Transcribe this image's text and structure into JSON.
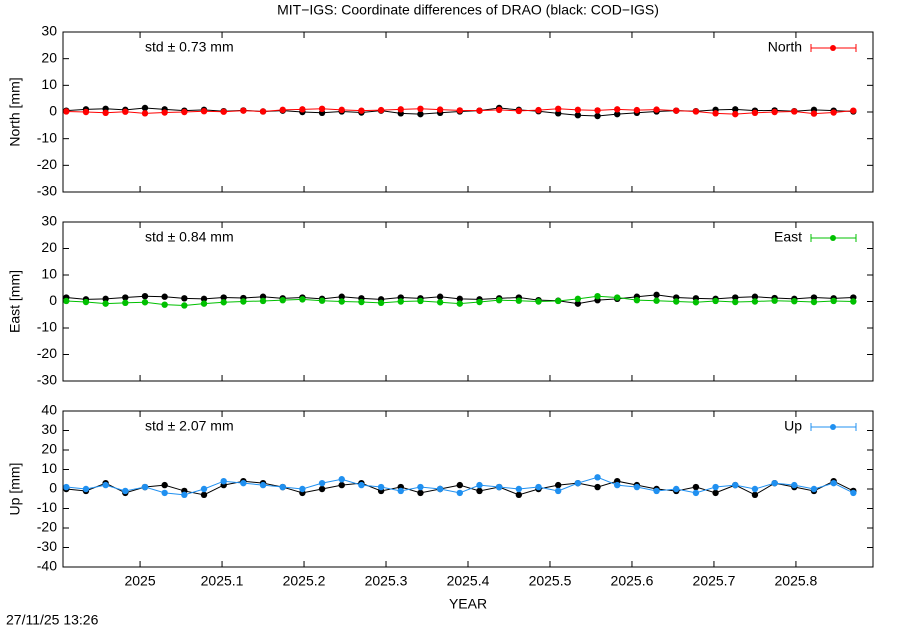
{
  "title": "MIT−IGS: Coordinate differences of DRAO (black: COD−IGS)",
  "timestamp": "27/11/25 13:26",
  "chart_data": [
    {
      "type": "scatter",
      "ylabel": "North [mm]",
      "annotation": "std ± 0.73 mm",
      "legend": "top-right",
      "grid": false,
      "x": [
        2024.91,
        2024.934,
        2024.958,
        2024.982,
        2025.006,
        2025.03,
        2025.054,
        2025.078,
        2025.102,
        2025.126,
        2025.15,
        2025.174,
        2025.198,
        2025.222,
        2025.246,
        2025.27,
        2025.294,
        2025.318,
        2025.342,
        2025.366,
        2025.39,
        2025.414,
        2025.438,
        2025.462,
        2025.486,
        2025.51,
        2025.534,
        2025.558,
        2025.582,
        2025.606,
        2025.63,
        2025.654,
        2025.678,
        2025.702,
        2025.726,
        2025.75,
        2025.774,
        2025.798,
        2025.822,
        2025.846,
        2025.87
      ],
      "xlim": [
        2024.906,
        2025.894
      ],
      "xticks": [
        2025,
        2025.1,
        2025.2,
        2025.3,
        2025.4,
        2025.5,
        2025.6,
        2025.7,
        2025.8
      ],
      "ylim": [
        -30,
        30
      ],
      "yticks": [
        -30,
        -20,
        -10,
        0,
        10,
        20,
        30
      ],
      "series": [
        {
          "color": "#000000",
          "values": [
            0.5,
            1,
            1.2,
            0.8,
            1.5,
            1,
            0.5,
            0.8,
            0.3,
            0.6,
            0.2,
            0.5,
            0,
            -0.3,
            0.2,
            -0.2,
            0.5,
            -0.5,
            -0.8,
            -0.3,
            0.2,
            0.5,
            1.5,
            0.8,
            0.3,
            -0.5,
            -1.2,
            -1.5,
            -0.8,
            -0.3,
            0.2,
            0.5,
            0.3,
            0.8,
            1,
            0.5,
            0.6,
            0.3,
            0.8,
            0.5,
            0.2
          ]
        },
        {
          "name": "North",
          "color": "#ff0000",
          "values": [
            0.2,
            0,
            -0.3,
            0.1,
            -0.5,
            -0.2,
            0,
            0.3,
            0.1,
            0.5,
            0.2,
            0.8,
            1,
            1.2,
            0.8,
            0.5,
            0.7,
            1,
            1.2,
            0.9,
            0.6,
            0.5,
            0.8,
            0.4,
            0.7,
            1.2,
            0.8,
            0.6,
            1,
            0.7,
            0.9,
            0.5,
            0.2,
            -0.5,
            -0.8,
            -0.3,
            0,
            0.2,
            -0.6,
            -0.2,
            0.5
          ]
        }
      ]
    },
    {
      "type": "scatter",
      "ylabel": "East [mm]",
      "annotation": "std ± 0.84 mm",
      "legend": "top-right",
      "grid": false,
      "x": [
        2024.91,
        2024.934,
        2024.958,
        2024.982,
        2025.006,
        2025.03,
        2025.054,
        2025.078,
        2025.102,
        2025.126,
        2025.15,
        2025.174,
        2025.198,
        2025.222,
        2025.246,
        2025.27,
        2025.294,
        2025.318,
        2025.342,
        2025.366,
        2025.39,
        2025.414,
        2025.438,
        2025.462,
        2025.486,
        2025.51,
        2025.534,
        2025.558,
        2025.582,
        2025.606,
        2025.63,
        2025.654,
        2025.678,
        2025.702,
        2025.726,
        2025.75,
        2025.774,
        2025.798,
        2025.822,
        2025.846,
        2025.87
      ],
      "xlim": [
        2024.906,
        2025.894
      ],
      "xticks": [
        2025,
        2025.1,
        2025.2,
        2025.3,
        2025.4,
        2025.5,
        2025.6,
        2025.7,
        2025.8
      ],
      "ylim": [
        -30,
        30
      ],
      "yticks": [
        -30,
        -20,
        -10,
        0,
        10,
        20,
        30
      ],
      "series": [
        {
          "color": "#000000",
          "values": [
            1.5,
            0.8,
            1,
            1.5,
            2,
            1.8,
            1.2,
            1,
            1.5,
            1.3,
            1.8,
            1.2,
            1.5,
            1,
            1.8,
            1.2,
            0.8,
            1.5,
            1.2,
            1.8,
            1,
            0.8,
            1.2,
            1.5,
            0.5,
            0.3,
            -0.8,
            0.5,
            1,
            1.8,
            2.5,
            1.5,
            1.2,
            1,
            1.5,
            1.8,
            1.3,
            1,
            1.5,
            1.2,
            1.5
          ]
        },
        {
          "name": "East",
          "color": "#00c000",
          "values": [
            0.2,
            -0.2,
            -0.8,
            -0.5,
            -0.3,
            -1.2,
            -1.5,
            -0.8,
            -0.3,
            0,
            0.2,
            0.5,
            0.8,
            0.3,
            0,
            -0.2,
            -0.5,
            0,
            0.2,
            -0.3,
            -0.8,
            -0.2,
            0.5,
            0.3,
            0,
            0.2,
            1,
            2,
            1.5,
            0.5,
            0.3,
            0,
            -0.3,
            0.2,
            -0.2,
            0,
            0.3,
            0.1,
            -0.2,
            0.2,
            0
          ]
        }
      ]
    },
    {
      "type": "scatter",
      "ylabel": "Up [mm]",
      "xlabel": "YEAR",
      "annotation": "std ± 2.07 mm",
      "legend": "top-right",
      "grid": false,
      "x": [
        2024.91,
        2024.934,
        2024.958,
        2024.982,
        2025.006,
        2025.03,
        2025.054,
        2025.078,
        2025.102,
        2025.126,
        2025.15,
        2025.174,
        2025.198,
        2025.222,
        2025.246,
        2025.27,
        2025.294,
        2025.318,
        2025.342,
        2025.366,
        2025.39,
        2025.414,
        2025.438,
        2025.462,
        2025.486,
        2025.51,
        2025.534,
        2025.558,
        2025.582,
        2025.606,
        2025.63,
        2025.654,
        2025.678,
        2025.702,
        2025.726,
        2025.75,
        2025.774,
        2025.798,
        2025.822,
        2025.846,
        2025.87
      ],
      "xlim": [
        2024.906,
        2025.894
      ],
      "xticks": [
        2025,
        2025.1,
        2025.2,
        2025.3,
        2025.4,
        2025.5,
        2025.6,
        2025.7,
        2025.8
      ],
      "ylim": [
        -40,
        40
      ],
      "yticks": [
        -40,
        -30,
        -20,
        -10,
        0,
        10,
        20,
        30,
        40
      ],
      "series": [
        {
          "color": "#000000",
          "values": [
            0,
            -1,
            3,
            -2,
            1,
            2,
            -1,
            -3,
            2,
            4,
            3,
            1,
            -2,
            0,
            2,
            3,
            -1,
            1,
            -2,
            0,
            2,
            -1,
            1,
            -3,
            0,
            2,
            3,
            1,
            4,
            2,
            0,
            -1,
            1,
            -2,
            2,
            -3,
            3,
            1,
            -1,
            4,
            -1
          ]
        },
        {
          "name": "Up",
          "color": "#2090f0",
          "values": [
            1,
            0,
            2,
            -1,
            1,
            -2,
            -3,
            0,
            4,
            3,
            2,
            1,
            0,
            3,
            5,
            2,
            1,
            -1,
            1,
            0,
            -2,
            2,
            1,
            0,
            1,
            -1,
            3,
            6,
            2,
            1,
            -1,
            0,
            -2,
            1,
            2,
            0,
            3,
            2,
            0,
            3,
            -2
          ]
        }
      ]
    }
  ]
}
